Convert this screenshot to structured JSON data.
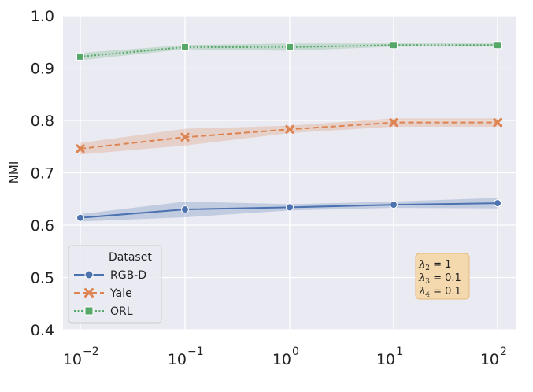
{
  "chart_data": {
    "type": "line",
    "xlabel": "",
    "ylabel": "NMI",
    "x_scale": "log",
    "x": [
      0.01,
      0.1,
      1,
      10,
      100
    ],
    "x_tick_labels": [
      {
        "base": "10",
        "exp": "−2"
      },
      {
        "base": "10",
        "exp": "−1"
      },
      {
        "base": "10",
        "exp": "0"
      },
      {
        "base": "10",
        "exp": "1"
      },
      {
        "base": "10",
        "exp": "2"
      }
    ],
    "ylim": [
      0.4,
      1.0
    ],
    "y_ticks": [
      "0.4",
      "0.5",
      "0.6",
      "0.7",
      "0.8",
      "0.9",
      "1.0"
    ],
    "grid": true,
    "legend": {
      "title": "Dataset",
      "placement": "lower-left"
    },
    "series": [
      {
        "name": "RGB-D",
        "color": "#4c72b0",
        "marker": "circle",
        "linestyle": "solid",
        "values": [
          0.614,
          0.63,
          0.634,
          0.639,
          0.642
        ],
        "band_low": [
          0.607,
          0.615,
          0.628,
          0.633,
          0.632
        ],
        "band_high": [
          0.621,
          0.645,
          0.64,
          0.645,
          0.652
        ]
      },
      {
        "name": "Yale",
        "color": "#dd8452",
        "marker": "x",
        "linestyle": "dashed",
        "values": [
          0.746,
          0.768,
          0.783,
          0.796,
          0.796
        ],
        "band_low": [
          0.735,
          0.752,
          0.776,
          0.788,
          0.788
        ],
        "band_high": [
          0.757,
          0.784,
          0.79,
          0.804,
          0.804
        ]
      },
      {
        "name": "ORL",
        "color": "#55a868",
        "marker": "square",
        "linestyle": "dotted",
        "values": [
          0.922,
          0.94,
          0.94,
          0.944,
          0.944
        ],
        "band_low": [
          0.915,
          0.936,
          0.933,
          0.941,
          0.941
        ],
        "band_high": [
          0.929,
          0.944,
          0.947,
          0.947,
          0.947
        ]
      }
    ],
    "annotation": {
      "lines": [
        {
          "sym": "λ",
          "sub": "2",
          "rest": " = 1"
        },
        {
          "sym": "λ",
          "sub": "3",
          "rest": " = 0.1"
        },
        {
          "sym": "λ",
          "sub": "4",
          "rest": " = 0.1"
        }
      ],
      "bg_color": "#f5d9ae",
      "border_color": "#e8b878"
    }
  }
}
